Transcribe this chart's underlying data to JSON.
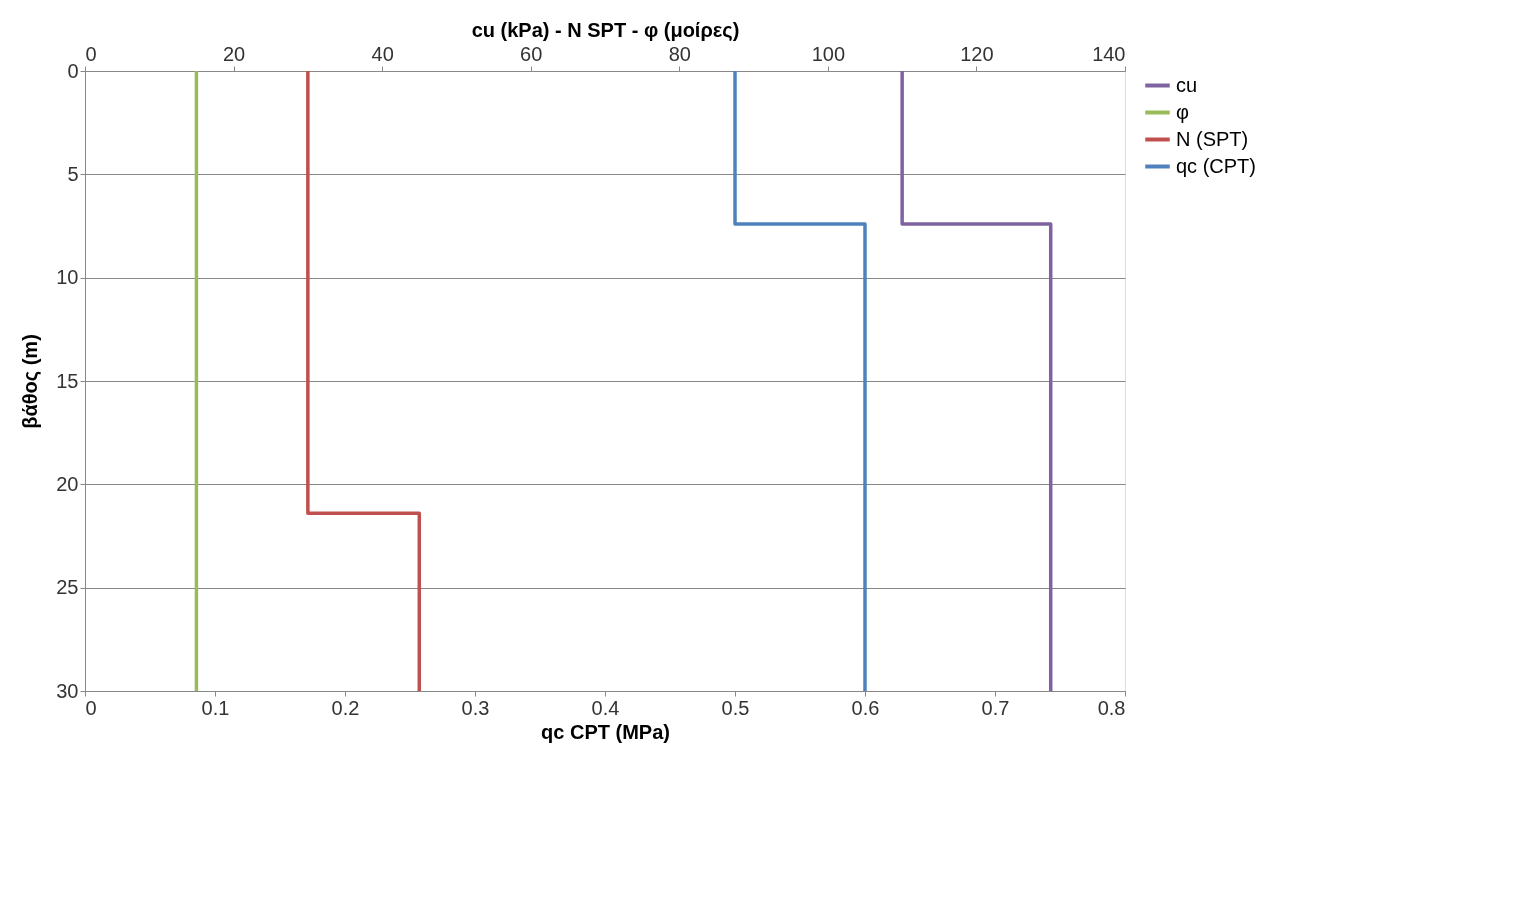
{
  "chart_data": {
    "type": "line",
    "xlabel": "qc CPT (MPa)",
    "x2label": "cu (kPa) - N SPT - φ (μοίρες)",
    "ylabel": "βάθος (m)",
    "xlim": [
      0,
      0.8
    ],
    "xticks": [
      0,
      0.1,
      0.2,
      0.3,
      0.4,
      0.5,
      0.6,
      0.7,
      0.8
    ],
    "x2lim": [
      0,
      140
    ],
    "x2ticks": [
      0,
      20,
      40,
      60,
      80,
      100,
      120,
      140
    ],
    "ylim": [
      30,
      0
    ],
    "yticks": [
      0,
      5,
      10,
      15,
      20,
      25,
      30
    ],
    "grid": "y",
    "legend": "right",
    "line_style": "solid",
    "marker": "none",
    "series": [
      {
        "name": "cu",
        "color": "#7f63a0",
        "axis": "x2",
        "x": [
          110,
          110,
          130,
          130
        ],
        "values": [
          0,
          7.4,
          7.4,
          30
        ]
      },
      {
        "name": "φ",
        "color": "#9bbb59",
        "axis": "x2",
        "x": [
          15,
          15
        ],
        "values": [
          0,
          30
        ]
      },
      {
        "name": "N (SPT)",
        "color": "#c0504d",
        "axis": "x2",
        "x": [
          30,
          30,
          45,
          45
        ],
        "values": [
          0,
          21.4,
          21.4,
          30
        ]
      },
      {
        "name": "qc (CPT)",
        "color": "#4f81bd",
        "x": [
          0.5,
          0.5,
          0.6,
          0.6
        ],
        "values": [
          0,
          7.4,
          7.4,
          30
        ]
      }
    ]
  }
}
